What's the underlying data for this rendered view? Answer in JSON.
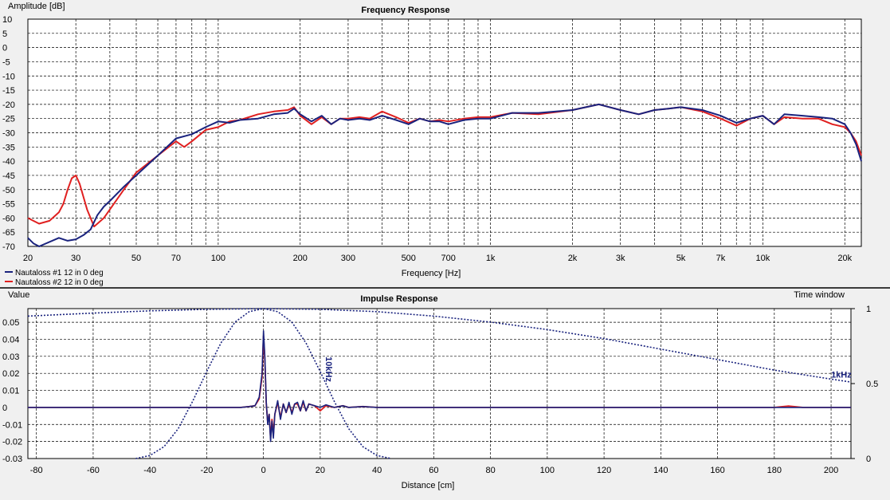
{
  "chart_data": [
    {
      "type": "line",
      "title": "Frequency Response",
      "ylabel": "Amplitude [dB]",
      "xlabel": "Frequency [Hz]",
      "xscale": "log",
      "xlim": [
        20,
        23000
      ],
      "ylim": [
        -70,
        10
      ],
      "grid": true,
      "legend": "bottom-left",
      "y_ticks": [
        10,
        5,
        0,
        -5,
        -10,
        -15,
        -20,
        -25,
        -30,
        -35,
        -40,
        -45,
        -50,
        -55,
        -60,
        -65,
        -70
      ],
      "y_tick_labels": [
        "10",
        "5",
        "0",
        "-5",
        "-10",
        "-15",
        "-20",
        "-25",
        "-30",
        "-35",
        "-40",
        "-45",
        "-50",
        "-55",
        "-60",
        "-65",
        "-70"
      ],
      "x_ticks": [
        20,
        30,
        50,
        70,
        100,
        200,
        300,
        500,
        700,
        1000,
        2000,
        3000,
        5000,
        7000,
        10000,
        20000
      ],
      "x_tick_labels": [
        "20",
        "30",
        "50",
        "70",
        "100",
        "200",
        "300",
        "500",
        "700",
        "1k",
        "2k",
        "3k",
        "5k",
        "7k",
        "10k",
        "20k"
      ],
      "series": [
        {
          "name": "Nautaloss #1 12 in 0 deg",
          "color": "#1a237e",
          "x": [
            20,
            21,
            22,
            26,
            28,
            30,
            32,
            34,
            36,
            38,
            40,
            45,
            50,
            60,
            70,
            80,
            90,
            100,
            110,
            120,
            140,
            160,
            180,
            190,
            200,
            220,
            240,
            260,
            280,
            300,
            330,
            360,
            400,
            450,
            500,
            550,
            600,
            650,
            700,
            800,
            900,
            1000,
            1200,
            1500,
            2000,
            2500,
            3000,
            3500,
            4000,
            4500,
            5000,
            6000,
            7000,
            8000,
            9000,
            10000,
            11000,
            12000,
            14000,
            16000,
            18000,
            20000,
            21000,
            22000,
            23000
          ],
          "y": [
            -67,
            -69,
            -72,
            -67,
            -68,
            -67.5,
            -66,
            -64,
            -59,
            -56,
            -54,
            -49,
            -45,
            -38,
            -32,
            -30.5,
            -28,
            -26,
            -26.5,
            -25.5,
            -25,
            -23.5,
            -23,
            -21.5,
            -23.5,
            -26,
            -24,
            -27,
            -25,
            -25.5,
            -25,
            -25.5,
            -24,
            -25.5,
            -27,
            -25,
            -26,
            -26,
            -27,
            -25.5,
            -25,
            -25,
            -23,
            -23,
            -22,
            -20,
            -22,
            -23.5,
            -22,
            -21.5,
            -21,
            -22,
            -24,
            -26.5,
            -25,
            -24,
            -27,
            -23.5,
            -24,
            -24.5,
            -25,
            -27,
            -30,
            -34,
            -40
          ]
        },
        {
          "name": "Nautaloss #2 12 in 0 deg",
          "color": "#e02020",
          "x": [
            20,
            22,
            24,
            26,
            27,
            28,
            29,
            30,
            31,
            33,
            35,
            38,
            40,
            45,
            50,
            60,
            70,
            75,
            80,
            90,
            100,
            110,
            120,
            140,
            160,
            180,
            190,
            200,
            220,
            240,
            260,
            280,
            300,
            330,
            360,
            400,
            450,
            500,
            550,
            600,
            650,
            700,
            800,
            900,
            1000,
            1200,
            1500,
            2000,
            2500,
            3000,
            3500,
            4000,
            4500,
            5000,
            6000,
            7000,
            8000,
            9000,
            10000,
            11000,
            12000,
            14000,
            16000,
            18000,
            20000,
            21000,
            22000,
            23000
          ],
          "y": [
            -60,
            -62,
            -61,
            -58,
            -55,
            -50,
            -46,
            -45,
            -48,
            -57,
            -63,
            -60,
            -57,
            -50,
            -44,
            -38,
            -33,
            -35,
            -33,
            -29,
            -28,
            -26,
            -25.5,
            -23.5,
            -22.5,
            -22,
            -21,
            -24,
            -27,
            -24.5,
            -27,
            -25,
            -25,
            -24.5,
            -25,
            -22.5,
            -24.5,
            -26.5,
            -25,
            -26,
            -25.5,
            -26,
            -25,
            -24.5,
            -24.5,
            -23,
            -23.5,
            -22,
            -20,
            -22,
            -23.5,
            -22,
            -21.5,
            -21,
            -22.5,
            -25,
            -27.5,
            -25,
            -24,
            -27,
            -24.5,
            -25,
            -25,
            -27,
            -28,
            -30,
            -33,
            -38
          ]
        }
      ]
    },
    {
      "type": "line",
      "title": "Impulse Response",
      "ylabel": "Value",
      "y2label": "Time window",
      "xlabel": "Distance [cm]",
      "xlim": [
        -83,
        207
      ],
      "ylim": [
        -0.03,
        0.058
      ],
      "y2lim": [
        0,
        1
      ],
      "grid": true,
      "y_ticks": [
        0.05,
        0.04,
        0.03,
        0.02,
        0.01,
        0,
        -0.01,
        -0.02,
        -0.03
      ],
      "y_tick_labels": [
        "0.05",
        "0.04",
        "0.03",
        "0.02",
        "0.01",
        "0",
        "-0.01",
        "-0.02",
        "-0.03"
      ],
      "y2_ticks": [
        1,
        0.5,
        0
      ],
      "y2_tick_labels": [
        "1",
        "0.5",
        "0"
      ],
      "x_ticks": [
        -80,
        -60,
        -40,
        -20,
        0,
        20,
        40,
        60,
        80,
        100,
        120,
        140,
        160,
        180,
        200
      ],
      "x_tick_labels": [
        "-80",
        "-60",
        "-40",
        "-20",
        "0",
        "20",
        "40",
        "60",
        "80",
        "100",
        "120",
        "140",
        "160",
        "180",
        "200"
      ],
      "annotations": [
        {
          "text": "10kHz",
          "x": 22,
          "y2": 0.68
        },
        {
          "text": "1kHz",
          "x": 200,
          "y2": 0.54
        }
      ],
      "window_10khz": {
        "x": [
          -45,
          -40,
          -35,
          -30,
          -25,
          -20,
          -15,
          -10,
          -5,
          0,
          5,
          10,
          15,
          20,
          25,
          30,
          35,
          40,
          45
        ],
        "y2": [
          0,
          0.02,
          0.08,
          0.2,
          0.38,
          0.58,
          0.77,
          0.91,
          0.98,
          1,
          0.98,
          0.91,
          0.77,
          0.58,
          0.38,
          0.2,
          0.08,
          0.02,
          0
        ]
      },
      "window_1khz": {
        "x": [
          -83,
          -60,
          -40,
          -20,
          0,
          20,
          40,
          60,
          80,
          100,
          120,
          140,
          160,
          180,
          200,
          207
        ],
        "y2": [
          0.95,
          0.97,
          0.985,
          0.995,
          1,
          0.995,
          0.98,
          0.95,
          0.91,
          0.86,
          0.8,
          0.73,
          0.66,
          0.59,
          0.53,
          0.51
        ]
      },
      "series": [
        {
          "name": "Nautaloss #1 12 in 0 deg",
          "color": "#1a237e",
          "x": [
            -83,
            -12,
            -8,
            -5,
            -3,
            -1.5,
            -0.5,
            0,
            0.5,
            1,
            1.5,
            2,
            2.5,
            3,
            3.5,
            4,
            5,
            6,
            7,
            8,
            9,
            10,
            11,
            12,
            13,
            14,
            15,
            16,
            18,
            20,
            22,
            25,
            28,
            30,
            35,
            40,
            50,
            60,
            80,
            100,
            150,
            200,
            207
          ],
          "y": [
            0,
            0,
            0,
            0.0005,
            0.001,
            0.006,
            0.02,
            0.045,
            0.03,
            0.003,
            -0.01,
            -0.004,
            -0.02,
            -0.008,
            -0.018,
            -0.004,
            0.004,
            -0.007,
            0.002,
            -0.003,
            0.003,
            -0.004,
            0.002,
            0.003,
            -0.002,
            0.004,
            -0.002,
            0.002,
            0.001,
            0,
            0.0015,
            0,
            0.001,
            0,
            0.0005,
            0,
            0,
            0,
            0,
            0,
            0,
            0,
            0
          ]
        },
        {
          "name": "Nautaloss #2 12 in 0 deg",
          "color": "#e02020",
          "x": [
            -83,
            -12,
            -8,
            -5,
            -3,
            -1.5,
            -0.5,
            0,
            0.5,
            1,
            1.5,
            2,
            2.5,
            3,
            3.5,
            4,
            5,
            6,
            7,
            8,
            9,
            10,
            11,
            12,
            13,
            14,
            15,
            16,
            18,
            20,
            22,
            25,
            28,
            30,
            35,
            40,
            50,
            60,
            80,
            100,
            150,
            180,
            185,
            190,
            200,
            207
          ],
          "y": [
            0,
            0,
            0,
            0.0005,
            0.001,
            0.005,
            0.018,
            0.042,
            0.028,
            0.002,
            -0.009,
            -0.004,
            -0.018,
            -0.007,
            -0.016,
            -0.004,
            0.003,
            -0.006,
            0.002,
            -0.003,
            0.002,
            -0.003,
            0.002,
            0.002,
            -0.002,
            0.003,
            -0.002,
            0.002,
            0.001,
            -0.002,
            0.001,
            0,
            0.001,
            0,
            0.0005,
            0,
            0,
            0,
            0,
            0,
            0,
            0,
            0.0008,
            0,
            0,
            0
          ]
        }
      ]
    }
  ]
}
